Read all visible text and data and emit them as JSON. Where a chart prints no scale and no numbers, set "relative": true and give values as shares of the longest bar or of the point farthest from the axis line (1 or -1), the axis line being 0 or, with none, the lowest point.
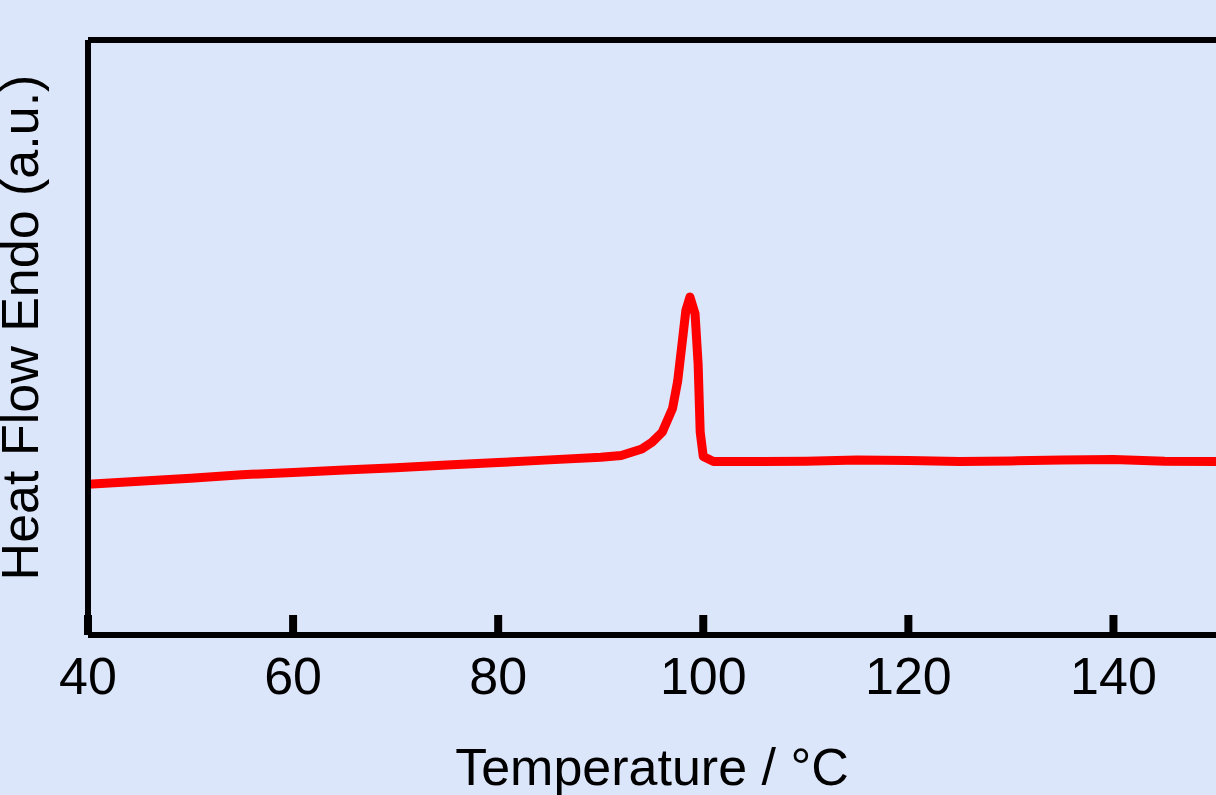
{
  "chart_data": {
    "type": "line",
    "xlabel": "Temperature / °C",
    "ylabel": "Heat Flow Endo (a.u.)",
    "relative": true,
    "xlim": [
      40,
      150
    ],
    "xticks": [
      40,
      60,
      80,
      100,
      120,
      140
    ],
    "marker": "none",
    "line_style": "solid",
    "series": [
      {
        "color": "#ff0000",
        "x": [
          40,
          45,
          50,
          55,
          60,
          65,
          70,
          75,
          80,
          85,
          90,
          92,
          94,
          95,
          96,
          97,
          97.5,
          98,
          98.3,
          98.7,
          99.2,
          99.5,
          99.7,
          100,
          101,
          105,
          110,
          115,
          120,
          125,
          130,
          135,
          140,
          145,
          150
        ],
        "values": [
          0.446,
          0.455,
          0.464,
          0.474,
          0.481,
          0.488,
          0.495,
          0.503,
          0.51,
          0.518,
          0.526,
          0.531,
          0.55,
          0.57,
          0.6,
          0.67,
          0.75,
          0.88,
          0.96,
          1,
          0.95,
          0.8,
          0.6,
          0.528,
          0.513,
          0.513,
          0.514,
          0.518,
          0.516,
          0.513,
          0.515,
          0.518,
          0.519,
          0.514,
          0.513
        ]
      }
    ]
  }
}
